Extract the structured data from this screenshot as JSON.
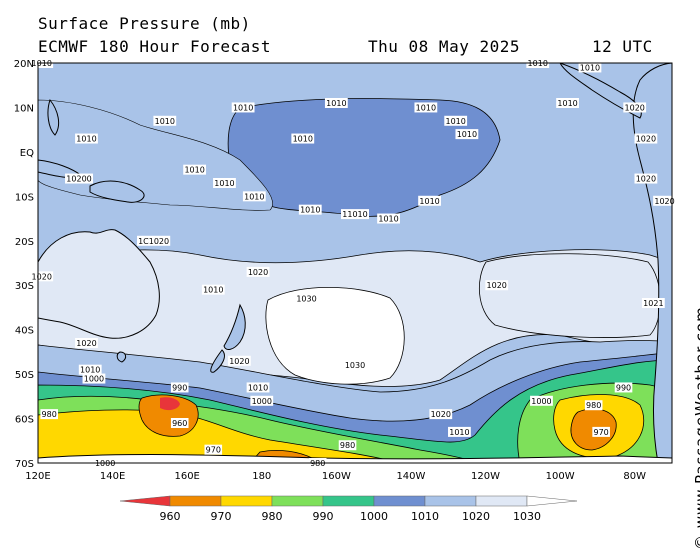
{
  "header": {
    "title": "Surface Pressure (mb)",
    "model": "ECMWF 180 Hour Forecast",
    "date": "Thu 08 May 2025",
    "time": "12 UTC"
  },
  "credit": "© www.PassageWeather.com",
  "axes": {
    "lon_ticks": [
      "120E",
      "140E",
      "160E",
      "180",
      "160W",
      "140W",
      "120W",
      "100W",
      "80W"
    ],
    "lat_ticks": [
      "20N",
      "10N",
      "EQ",
      "10S",
      "20S",
      "30S",
      "40S",
      "50S",
      "60S",
      "70S"
    ]
  },
  "legend": {
    "labels": [
      "960",
      "970",
      "980",
      "990",
      "1000",
      "1010",
      "1020",
      "1030"
    ],
    "colors": [
      "#e8353a",
      "#f08a00",
      "#ffd800",
      "#7ee05a",
      "#35c58a",
      "#6f8fd0",
      "#a9c3e8",
      "#e0e8f5",
      "#ffffff"
    ]
  },
  "contour_labels": [
    {
      "text": "1010",
      "lon": 121,
      "lat": 20
    },
    {
      "text": "1010",
      "lon": 175,
      "lat": 10
    },
    {
      "text": "1010",
      "lon": 133,
      "lat": 3
    },
    {
      "text": "1010",
      "lon": 154,
      "lat": 7
    },
    {
      "text": "1010",
      "lon": 191,
      "lat": 3
    },
    {
      "text": "1010",
      "lon": 200,
      "lat": 11
    },
    {
      "text": "1010",
      "lon": 224,
      "lat": 10
    },
    {
      "text": "1010",
      "lon": 232,
      "lat": 7
    },
    {
      "text": "1010",
      "lon": 235,
      "lat": 4
    },
    {
      "text": "1010",
      "lon": 262,
      "lat": 11
    },
    {
      "text": "1010",
      "lon": 254,
      "lat": 20
    },
    {
      "text": "1010",
      "lon": 268,
      "lat": 19
    },
    {
      "text": "10200",
      "lon": 131,
      "lat": -6
    },
    {
      "text": "1010",
      "lon": 162,
      "lat": -4
    },
    {
      "text": "1010",
      "lon": 170,
      "lat": -7
    },
    {
      "text": "1010",
      "lon": 178,
      "lat": -10
    },
    {
      "text": "1010",
      "lon": 193,
      "lat": -13
    },
    {
      "text": "11010",
      "lon": 205,
      "lat": -14
    },
    {
      "text": "1010",
      "lon": 214,
      "lat": -15
    },
    {
      "text": "1010",
      "lon": 225,
      "lat": -11
    },
    {
      "text": "1020",
      "lon": 280,
      "lat": 10
    },
    {
      "text": "1020",
      "lon": 283,
      "lat": 3
    },
    {
      "text": "1020",
      "lon": 283,
      "lat": -6
    },
    {
      "text": "1020",
      "lon": 288,
      "lat": -11
    },
    {
      "text": "1C1020",
      "lon": 151,
      "lat": -20
    },
    {
      "text": "1020",
      "lon": 121,
      "lat": -28
    },
    {
      "text": "1010",
      "lon": 167,
      "lat": -31
    },
    {
      "text": "1020",
      "lon": 179,
      "lat": -27
    },
    {
      "text": "1030",
      "lon": 192,
      "lat": -33
    },
    {
      "text": "1020",
      "lon": 243,
      "lat": -30
    },
    {
      "text": "1021",
      "lon": 285,
      "lat": -34
    },
    {
      "text": "1020",
      "lon": 133,
      "lat": -43
    },
    {
      "text": "1010",
      "lon": 134,
      "lat": -49
    },
    {
      "text": "1000",
      "lon": 135,
      "lat": -51
    },
    {
      "text": "1020",
      "lon": 174,
      "lat": -47
    },
    {
      "text": "990",
      "lon": 158,
      "lat": -53
    },
    {
      "text": "1010",
      "lon": 179,
      "lat": -53
    },
    {
      "text": "1000",
      "lon": 180,
      "lat": -56
    },
    {
      "text": "1030",
      "lon": 205,
      "lat": -48
    },
    {
      "text": "980",
      "lon": 123,
      "lat": -59
    },
    {
      "text": "960",
      "lon": 158,
      "lat": -61
    },
    {
      "text": "970",
      "lon": 167,
      "lat": -67
    },
    {
      "text": "980",
      "lon": 203,
      "lat": -66
    },
    {
      "text": "980",
      "lon": 195,
      "lat": -70
    },
    {
      "text": "1000",
      "lon": 138,
      "lat": -70
    },
    {
      "text": "1020",
      "lon": 228,
      "lat": -59
    },
    {
      "text": "1010",
      "lon": 233,
      "lat": -63
    },
    {
      "text": "1000",
      "lon": 255,
      "lat": -56
    },
    {
      "text": "980",
      "lon": 269,
      "lat": -57
    },
    {
      "text": "990",
      "lon": 277,
      "lat": -53
    },
    {
      "text": "970",
      "lon": 271,
      "lat": -63
    }
  ]
}
